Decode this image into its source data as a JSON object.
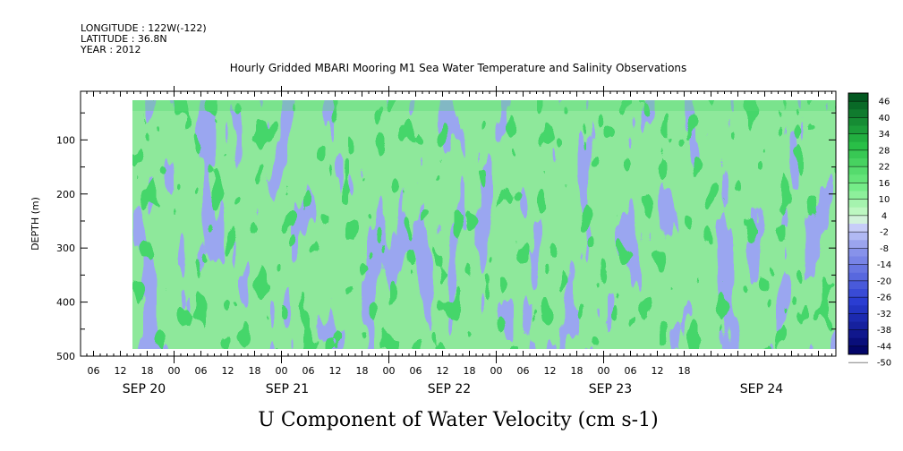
{
  "header": {
    "longitude": "LONGITUDE : 122W(-122)",
    "latitude": "LATITUDE : 36.8N",
    "year": "YEAR : 2012"
  },
  "chart_data": {
    "type": "heatmap",
    "title": "Hourly Gridded MBARI Mooring M1 Sea Water Temperature and Salinity Observations",
    "xlabel": "U Component of Water Velocity (cm s-1)",
    "ylabel": "DEPTH (m)",
    "x_hour_ticks": [
      "06",
      "12",
      "18",
      "00",
      "06",
      "12",
      "18",
      "00",
      "06",
      "12",
      "18",
      "00",
      "06",
      "12",
      "18",
      "00",
      "06",
      "12",
      "18",
      "00",
      "06",
      "12",
      "18"
    ],
    "x_day_labels": [
      "SEP 20",
      "SEP 21",
      "SEP 22",
      "SEP 23",
      "SEP 24"
    ],
    "y_ticks": [
      "100",
      "200",
      "300",
      "400",
      "500"
    ],
    "ylim": [
      500,
      10
    ],
    "colorbar": {
      "labels": [
        "46",
        "40",
        "34",
        "28",
        "22",
        "16",
        "10",
        "4",
        "-2",
        "-8",
        "-14",
        "-20",
        "-26",
        "-32",
        "-38",
        "-44",
        "-50"
      ],
      "range": [
        -50,
        46
      ],
      "step": 3
    }
  }
}
